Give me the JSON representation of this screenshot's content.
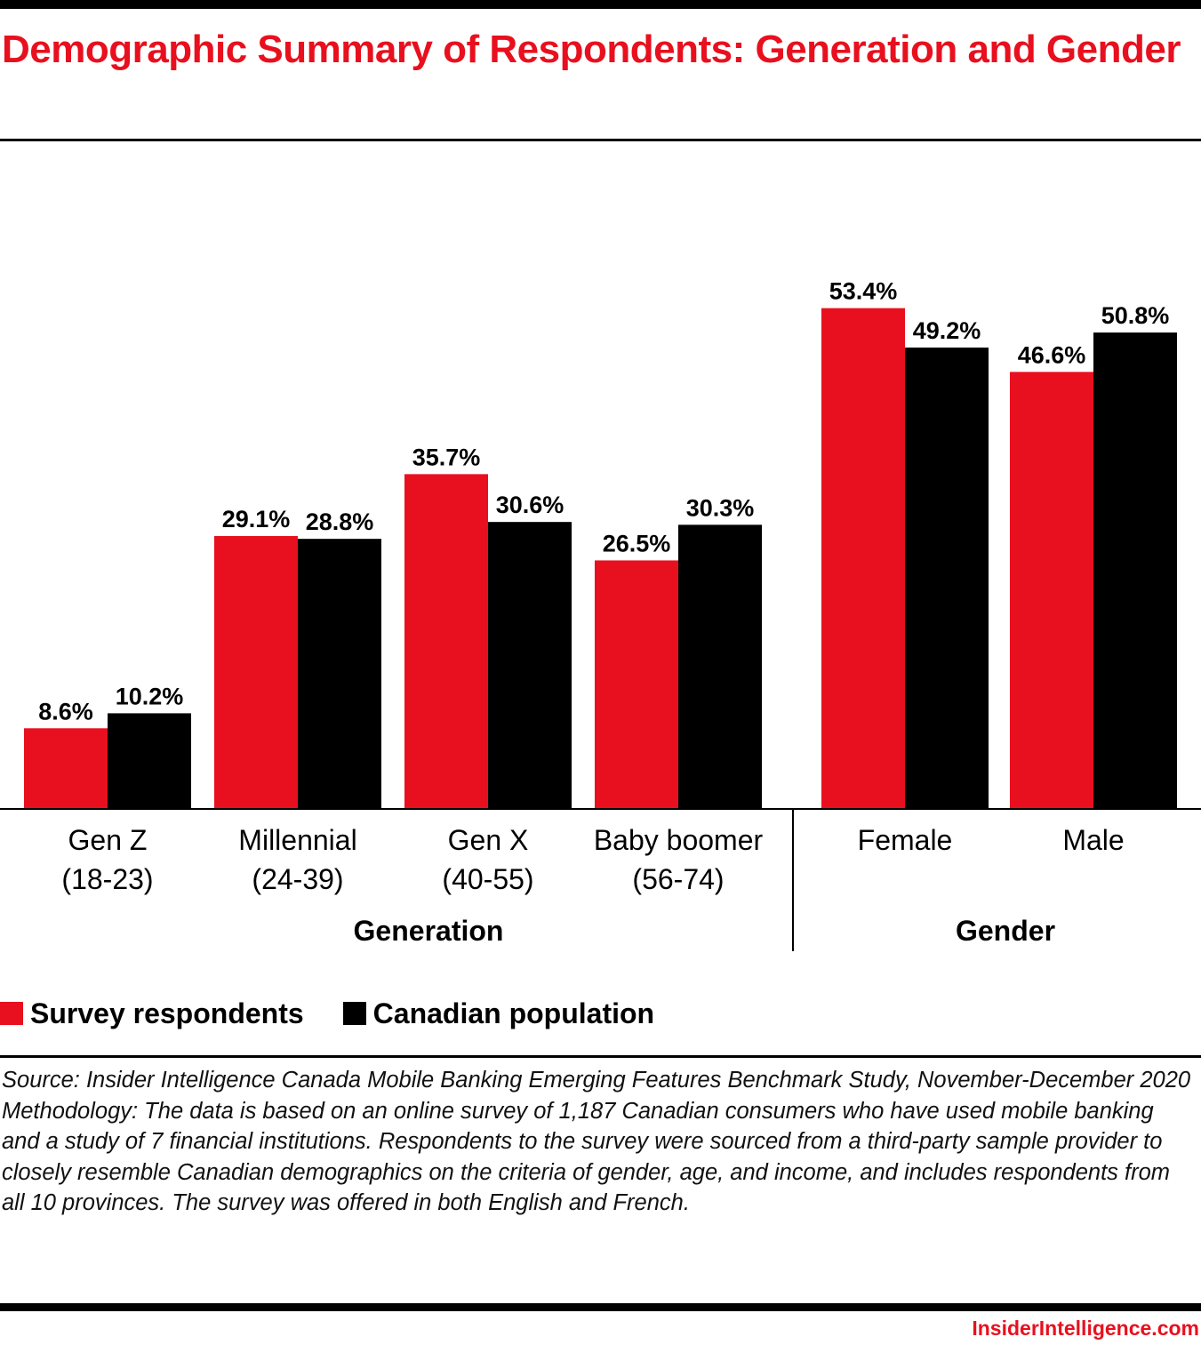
{
  "title": "Demographic Summary of Respondents: Generation and Gender",
  "colors": {
    "survey": "#e8101e",
    "population": "#000000",
    "title": "#e8101e"
  },
  "chart_data": {
    "type": "bar",
    "title": "Demographic Summary of Respondents: Generation and Gender",
    "xlabel": "",
    "ylabel": "",
    "ylim": [
      0,
      60
    ],
    "grid": false,
    "legend_position": "bottom-left",
    "groups": [
      {
        "name": "Generation",
        "categories": [
          "Gen Z (18-23)",
          "Millennial (24-39)",
          "Gen X (40-55)",
          "Baby boomer (56-74)"
        ]
      },
      {
        "name": "Gender",
        "categories": [
          "Female",
          "Male"
        ]
      }
    ],
    "categories": [
      {
        "line1": "Gen Z",
        "line2": "(18-23)",
        "group": "Generation"
      },
      {
        "line1": "Millennial",
        "line2": "(24-39)",
        "group": "Generation"
      },
      {
        "line1": "Gen X",
        "line2": "(40-55)",
        "group": "Generation"
      },
      {
        "line1": "Baby boomer",
        "line2": "(56-74)",
        "group": "Generation"
      },
      {
        "line1": "Female",
        "line2": "",
        "group": "Gender"
      },
      {
        "line1": "Male",
        "line2": "",
        "group": "Gender"
      }
    ],
    "series": [
      {
        "name": "Survey respondents",
        "color": "#e8101e",
        "values": [
          8.6,
          29.1,
          35.7,
          26.5,
          53.4,
          46.6
        ],
        "labels": [
          "8.6%",
          "29.1%",
          "35.7%",
          "26.5%",
          "53.4%",
          "46.6%"
        ]
      },
      {
        "name": "Canadian population",
        "color": "#000000",
        "values": [
          10.2,
          28.8,
          30.6,
          30.3,
          49.2,
          50.8
        ],
        "labels": [
          "10.2%",
          "28.8%",
          "30.6%",
          "30.3%",
          "49.2%",
          "50.8%"
        ]
      }
    ],
    "unit": "%"
  },
  "legend": [
    {
      "label": "Survey respondents",
      "color": "#e8101e"
    },
    {
      "label": "Canadian population",
      "color": "#000000"
    }
  ],
  "notes": {
    "source": "Source: Insider Intelligence Canada Mobile Banking Emerging Features Benchmark Study, November-December 2020",
    "methodology": "Methodology: The data is based on an online survey of 1,187 Canadian consumers who have used mobile banking and a study of 7 financial institutions. Respondents to the survey were sourced from a third-party sample provider to closely resemble Canadian demographics on the criteria of gender, age, and income, and includes respondents from all 10 provinces. The survey was offered in both English and French."
  },
  "brand": "InsiderIntelligence.com"
}
